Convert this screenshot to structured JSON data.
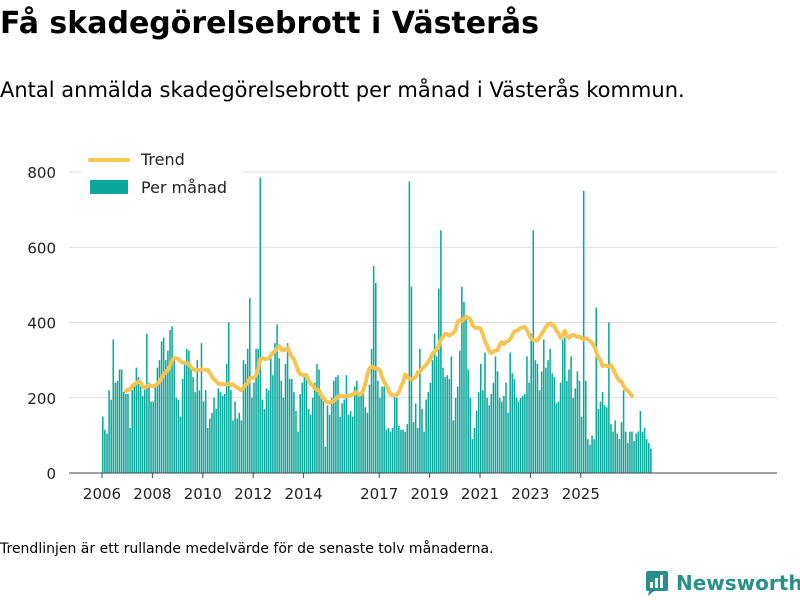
{
  "header": {
    "title": "Få skadegörelsebrott i Västerås",
    "subtitle": "Antal anmälda skadegörelsebrott per månad i Västerås kommun."
  },
  "footer": {
    "note": "Trendlinjen är ett rullande medelvärde för de senaste tolv månaderna.",
    "brand": "Newsworthy"
  },
  "colors": {
    "bars": "#0da89c",
    "trend": "#f6c452",
    "grid": "#dddddd",
    "brand": "#2a8f8a"
  },
  "icons": {
    "logo": "bar-chart-logo-icon"
  },
  "chart_data": {
    "type": "bar",
    "start": "2006-01",
    "y_ticks": [
      0,
      200,
      400,
      600,
      800
    ],
    "x_ticks": [
      "2006",
      "2008",
      "2010",
      "2012",
      "2014",
      "2017",
      "2019",
      "2021",
      "2023",
      "2025"
    ],
    "ylim": [
      0,
      830
    ],
    "grid": true,
    "legend": {
      "position": "top-left",
      "items": [
        "Trend",
        "Per månad"
      ]
    },
    "series": [
      {
        "name": "Per månad",
        "values": [
          150,
          115,
          105,
          220,
          195,
          355,
          240,
          245,
          275,
          275,
          215,
          210,
          210,
          120,
          220,
          235,
          280,
          255,
          230,
          205,
          230,
          370,
          240,
          190,
          190,
          230,
          280,
          300,
          350,
          360,
          300,
          325,
          380,
          390,
          310,
          200,
          195,
          150,
          250,
          290,
          330,
          325,
          280,
          255,
          215,
          300,
          220,
          345,
          190,
          220,
          120,
          145,
          160,
          200,
          170,
          225,
          215,
          205,
          210,
          290,
          400,
          220,
          140,
          190,
          145,
          160,
          140,
          300,
          290,
          330,
          465,
          200,
          240,
          330,
          330,
          785,
          195,
          170,
          225,
          220,
          305,
          260,
          345,
          395,
          305,
          245,
          200,
          290,
          345,
          250,
          250,
          215,
          165,
          110,
          210,
          240,
          260,
          260,
          170,
          155,
          200,
          240,
          290,
          275,
          205,
          195,
          70,
          180,
          155,
          200,
          245,
          255,
          260,
          150,
          185,
          195,
          260,
          155,
          165,
          150,
          230,
          245,
          215,
          205,
          210,
          175,
          160,
          235,
          330,
          550,
          505,
          245,
          200,
          230,
          230,
          115,
          120,
          110,
          120,
          210,
          200,
          125,
          115,
          115,
          110,
          130,
          775,
          495,
          135,
          185,
          120,
          330,
          170,
          110,
          195,
          215,
          240,
          300,
          370,
          310,
          490,
          645,
          280,
          255,
          260,
          250,
          310,
          140,
          200,
          230,
          325,
          495,
          455,
          420,
          275,
          200,
          90,
          120,
          165,
          215,
          290,
          220,
          320,
          200,
          180,
          210,
          240,
          310,
          270,
          200,
          190,
          205,
          240,
          160,
          320,
          265,
          250,
          200,
          190,
          200,
          205,
          210,
          310,
          240,
          370,
          645,
          300,
          290,
          220,
          270,
          355,
          280,
          300,
          330,
          265,
          255,
          185,
          190,
          240,
          355,
          360,
          245,
          275,
          310,
          200,
          225,
          270,
          245,
          150,
          750,
          245,
          90,
          75,
          100,
          90,
          440,
          170,
          190,
          215,
          180,
          175,
          400,
          130,
          110,
          140,
          105,
          90,
          135,
          220,
          110,
          80,
          110,
          110,
          85,
          105,
          110,
          165,
          110,
          120,
          90,
          80,
          65
        ]
      },
      {
        "name": "Trend",
        "values": [
          null,
          null,
          null,
          null,
          null,
          null,
          null,
          null,
          null,
          null,
          null,
          218,
          222,
          222,
          232,
          235,
          240,
          242,
          241,
          230,
          226,
          232,
          232,
          231,
          230,
          232,
          237,
          243,
          253,
          263,
          268,
          274,
          285,
          299,
          305,
          305,
          303,
          297,
          294,
          293,
          292,
          289,
          281,
          276,
          273,
          273,
          273,
          275,
          275,
          274,
          274,
          266,
          256,
          250,
          243,
          238,
          236,
          236,
          236,
          235,
          238,
          234,
          236,
          231,
          227,
          223,
          220,
          228,
          234,
          239,
          252,
          253,
          254,
          260,
          276,
          302,
          306,
          303,
          303,
          305,
          312,
          320,
          323,
          331,
          337,
          328,
          326,
          329,
          333,
          320,
          308,
          303,
          288,
          271,
          263,
          261,
          260,
          260,
          246,
          237,
          233,
          224,
          222,
          219,
          207,
          198,
          193,
          188,
          187,
          189,
          192,
          197,
          203,
          205,
          205,
          203,
          205,
          205,
          206,
          209,
          214,
          214,
          208,
          210,
          220,
          237,
          262,
          278,
          283,
          280,
          277,
          277,
          273,
          254,
          241,
          233,
          220,
          208,
          208,
          206,
          208,
          216,
          230,
          241,
          262,
          256,
          250,
          249,
          251,
          255,
          268,
          269,
          277,
          282,
          288,
          296,
          304,
          318,
          322,
          329,
          338,
          356,
          362,
          370,
          369,
          365,
          369,
          373,
          381,
          402,
          407,
          404,
          410,
          416,
          413,
          408,
          394,
          387,
          385,
          386,
          383,
          368,
          350,
          339,
          325,
          319,
          323,
          325,
          327,
          340,
          348,
          343,
          349,
          350,
          356,
          366,
          376,
          378,
          381,
          385,
          387,
          388,
          380,
          367,
          357,
          354,
          352,
          353,
          361,
          370,
          378,
          388,
          396,
          398,
          392,
          392,
          378,
          371,
          360,
          365,
          378,
          365,
          359,
          365,
          367,
          365,
          361,
          362,
          358,
          355,
          358,
          356,
          350,
          346,
          338,
          321,
          306,
          299,
          284,
          286,
          284,
          283,
          286,
          276,
          264,
          253,
          245,
          243,
          231,
          223,
          219,
          212,
          205
        ]
      }
    ]
  }
}
